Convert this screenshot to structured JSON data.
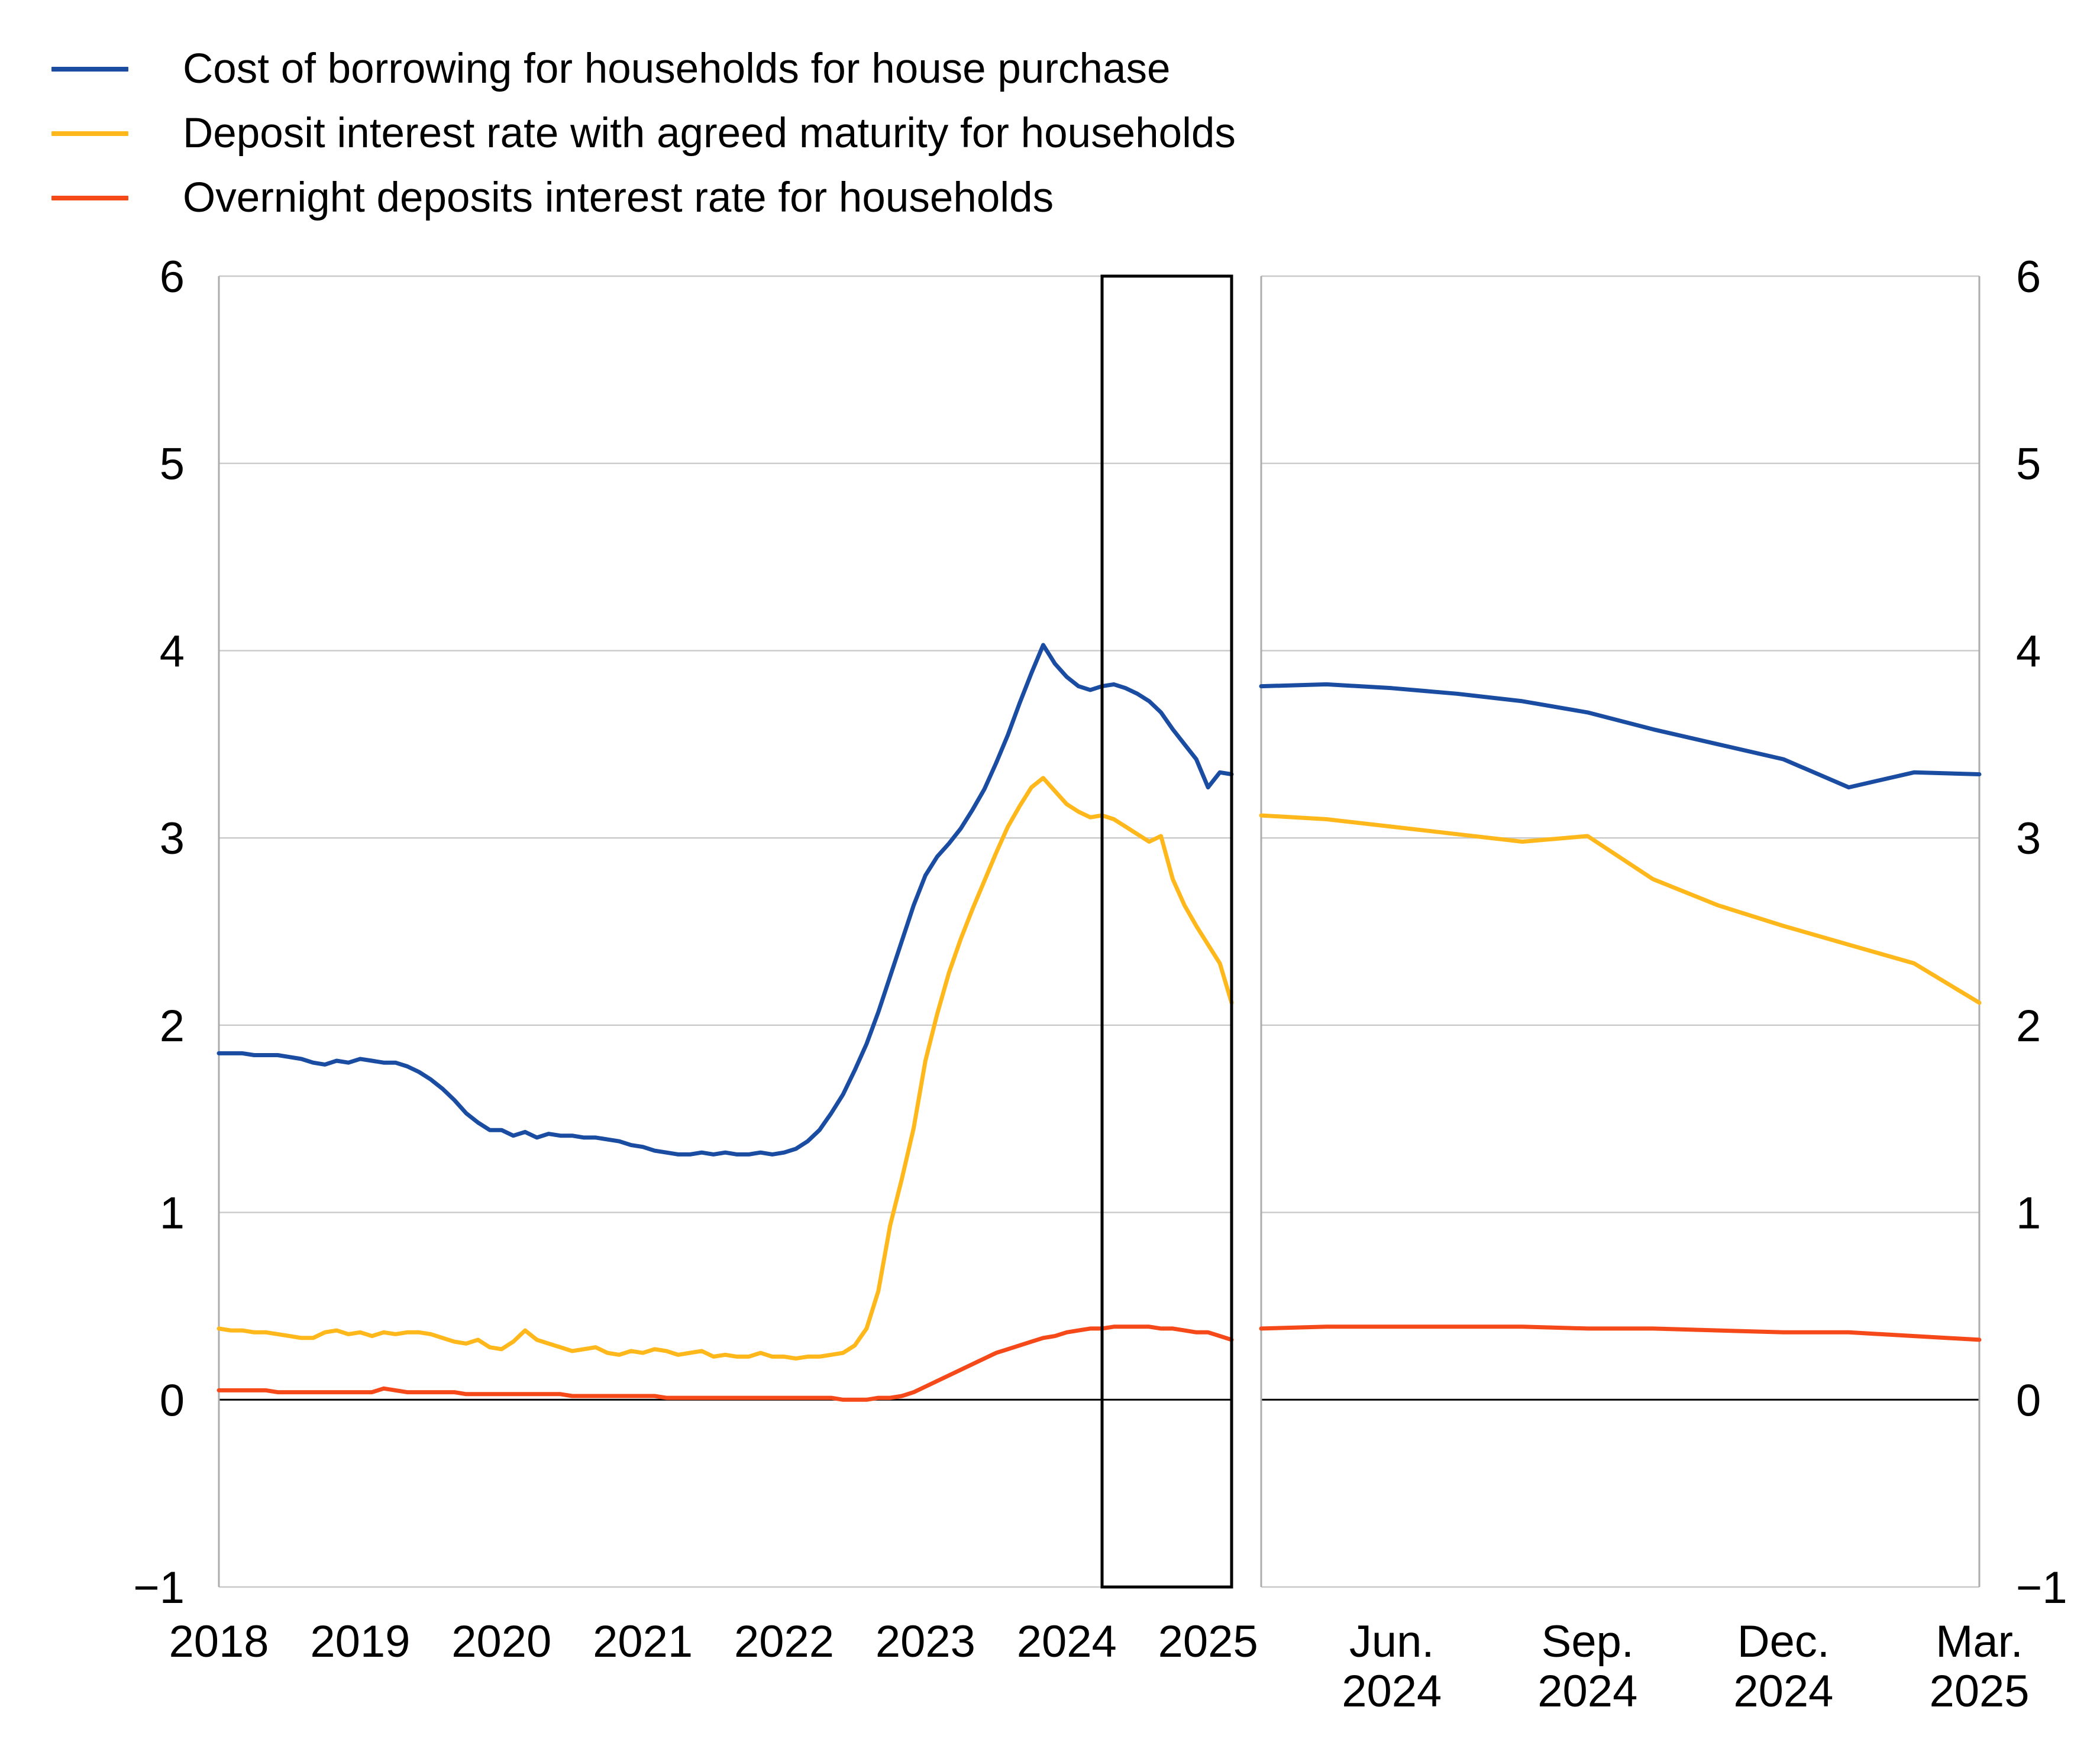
{
  "legend": {
    "items": [
      {
        "label": "Cost of borrowing for households for house purchase",
        "color": "#1A4DA1"
      },
      {
        "label": "Deposit interest rate with agreed maturity for households",
        "color": "#FFB81C"
      },
      {
        "label": "Overnight deposits interest rate for households",
        "color": "#F5491A"
      }
    ]
  },
  "style_colors": {
    "gridline": "#C9C9C9",
    "panel_border": "#ACACAC",
    "zero_line": "#000000",
    "highlight_box": "#000000",
    "tick_text": "#000000"
  },
  "chart_data": [
    {
      "type": "line",
      "panel": "left",
      "x_freq": "monthly",
      "x_start": "2018-01",
      "n_points": 87,
      "x_tick_labels": [
        "2018",
        "2019",
        "2020",
        "2021",
        "2022",
        "2023",
        "2024",
        "2025"
      ],
      "x_tick_month_index": [
        0,
        12,
        24,
        36,
        48,
        60,
        72,
        84
      ],
      "ylim": [
        -1,
        6
      ],
      "y_ticks": [
        6,
        5,
        4,
        3,
        2,
        1,
        0,
        -1
      ],
      "grid": true,
      "highlight_box": {
        "from": "2024-04",
        "to": "2025-03",
        "month_index_from": 75,
        "month_index_to": 86
      },
      "series": [
        {
          "name": "Cost of borrowing for households for house purchase",
          "color": "#1A4DA1",
          "values": [
            1.85,
            1.85,
            1.85,
            1.84,
            1.84,
            1.84,
            1.83,
            1.82,
            1.8,
            1.79,
            1.81,
            1.8,
            1.82,
            1.81,
            1.8,
            1.8,
            1.78,
            1.75,
            1.71,
            1.66,
            1.6,
            1.53,
            1.48,
            1.44,
            1.44,
            1.41,
            1.43,
            1.4,
            1.42,
            1.41,
            1.41,
            1.4,
            1.4,
            1.39,
            1.38,
            1.36,
            1.35,
            1.33,
            1.32,
            1.31,
            1.31,
            1.32,
            1.31,
            1.32,
            1.31,
            1.31,
            1.32,
            1.31,
            1.32,
            1.34,
            1.38,
            1.44,
            1.53,
            1.63,
            1.76,
            1.9,
            2.07,
            2.26,
            2.45,
            2.64,
            2.8,
            2.9,
            2.97,
            3.05,
            3.15,
            3.26,
            3.4,
            3.55,
            3.72,
            3.88,
            4.03,
            3.93,
            3.86,
            3.81,
            3.79,
            3.81,
            3.82,
            3.8,
            3.77,
            3.73,
            3.67,
            3.58,
            3.5,
            3.42,
            3.27,
            3.35,
            3.34
          ]
        },
        {
          "name": "Deposit interest rate with agreed maturity for households",
          "color": "#FFB81C",
          "values": [
            0.38,
            0.37,
            0.37,
            0.36,
            0.36,
            0.35,
            0.34,
            0.33,
            0.33,
            0.36,
            0.37,
            0.35,
            0.36,
            0.34,
            0.36,
            0.35,
            0.36,
            0.36,
            0.35,
            0.33,
            0.31,
            0.3,
            0.32,
            0.28,
            0.27,
            0.31,
            0.37,
            0.32,
            0.3,
            0.28,
            0.26,
            0.27,
            0.28,
            0.25,
            0.24,
            0.26,
            0.25,
            0.27,
            0.26,
            0.24,
            0.25,
            0.26,
            0.23,
            0.24,
            0.23,
            0.23,
            0.25,
            0.23,
            0.23,
            0.22,
            0.23,
            0.23,
            0.24,
            0.25,
            0.29,
            0.38,
            0.58,
            0.93,
            1.18,
            1.45,
            1.81,
            2.06,
            2.28,
            2.46,
            2.62,
            2.77,
            2.92,
            3.06,
            3.17,
            3.27,
            3.32,
            3.25,
            3.18,
            3.14,
            3.11,
            3.12,
            3.1,
            3.06,
            3.02,
            2.98,
            3.01,
            2.78,
            2.64,
            2.53,
            2.43,
            2.33,
            2.12
          ]
        },
        {
          "name": "Overnight deposits interest rate for households",
          "color": "#F5491A",
          "values": [
            0.05,
            0.05,
            0.05,
            0.05,
            0.05,
            0.04,
            0.04,
            0.04,
            0.04,
            0.04,
            0.04,
            0.04,
            0.04,
            0.04,
            0.06,
            0.05,
            0.04,
            0.04,
            0.04,
            0.04,
            0.04,
            0.03,
            0.03,
            0.03,
            0.03,
            0.03,
            0.03,
            0.03,
            0.03,
            0.03,
            0.02,
            0.02,
            0.02,
            0.02,
            0.02,
            0.02,
            0.02,
            0.02,
            0.01,
            0.01,
            0.01,
            0.01,
            0.01,
            0.01,
            0.01,
            0.01,
            0.01,
            0.01,
            0.01,
            0.01,
            0.01,
            0.01,
            0.01,
            0.0,
            0.0,
            0.0,
            0.01,
            0.01,
            0.02,
            0.04,
            0.07,
            0.1,
            0.13,
            0.16,
            0.19,
            0.22,
            0.25,
            0.27,
            0.29,
            0.31,
            0.33,
            0.34,
            0.36,
            0.37,
            0.38,
            0.38,
            0.39,
            0.39,
            0.39,
            0.39,
            0.38,
            0.38,
            0.37,
            0.36,
            0.36,
            0.34,
            0.32
          ]
        }
      ]
    },
    {
      "type": "line",
      "panel": "right",
      "x_freq": "monthly",
      "x_start": "2024-04",
      "n_points": 12,
      "x_tick_labels": [
        [
          "Jun.",
          "2024"
        ],
        [
          "Sep.",
          "2024"
        ],
        [
          "Dec.",
          "2024"
        ],
        [
          "Mar.",
          "2025"
        ]
      ],
      "x_tick_month_index": [
        2,
        5,
        8,
        11
      ],
      "ylim": [
        -1,
        6
      ],
      "y_ticks": [
        6,
        5,
        4,
        3,
        2,
        1,
        0,
        -1
      ],
      "grid": true,
      "series": [
        {
          "name": "Cost of borrowing for households for house purchase",
          "color": "#1A4DA1",
          "values": [
            3.81,
            3.82,
            3.8,
            3.77,
            3.73,
            3.67,
            3.58,
            3.5,
            3.42,
            3.27,
            3.35,
            3.34
          ]
        },
        {
          "name": "Deposit interest rate with agreed maturity for households",
          "color": "#FFB81C",
          "values": [
            3.12,
            3.1,
            3.06,
            3.02,
            2.98,
            3.01,
            2.78,
            2.64,
            2.53,
            2.43,
            2.33,
            2.12
          ]
        },
        {
          "name": "Overnight deposits interest rate for households",
          "color": "#F5491A",
          "values": [
            0.38,
            0.39,
            0.39,
            0.39,
            0.39,
            0.38,
            0.38,
            0.37,
            0.36,
            0.36,
            0.34,
            0.32
          ]
        }
      ]
    }
  ]
}
